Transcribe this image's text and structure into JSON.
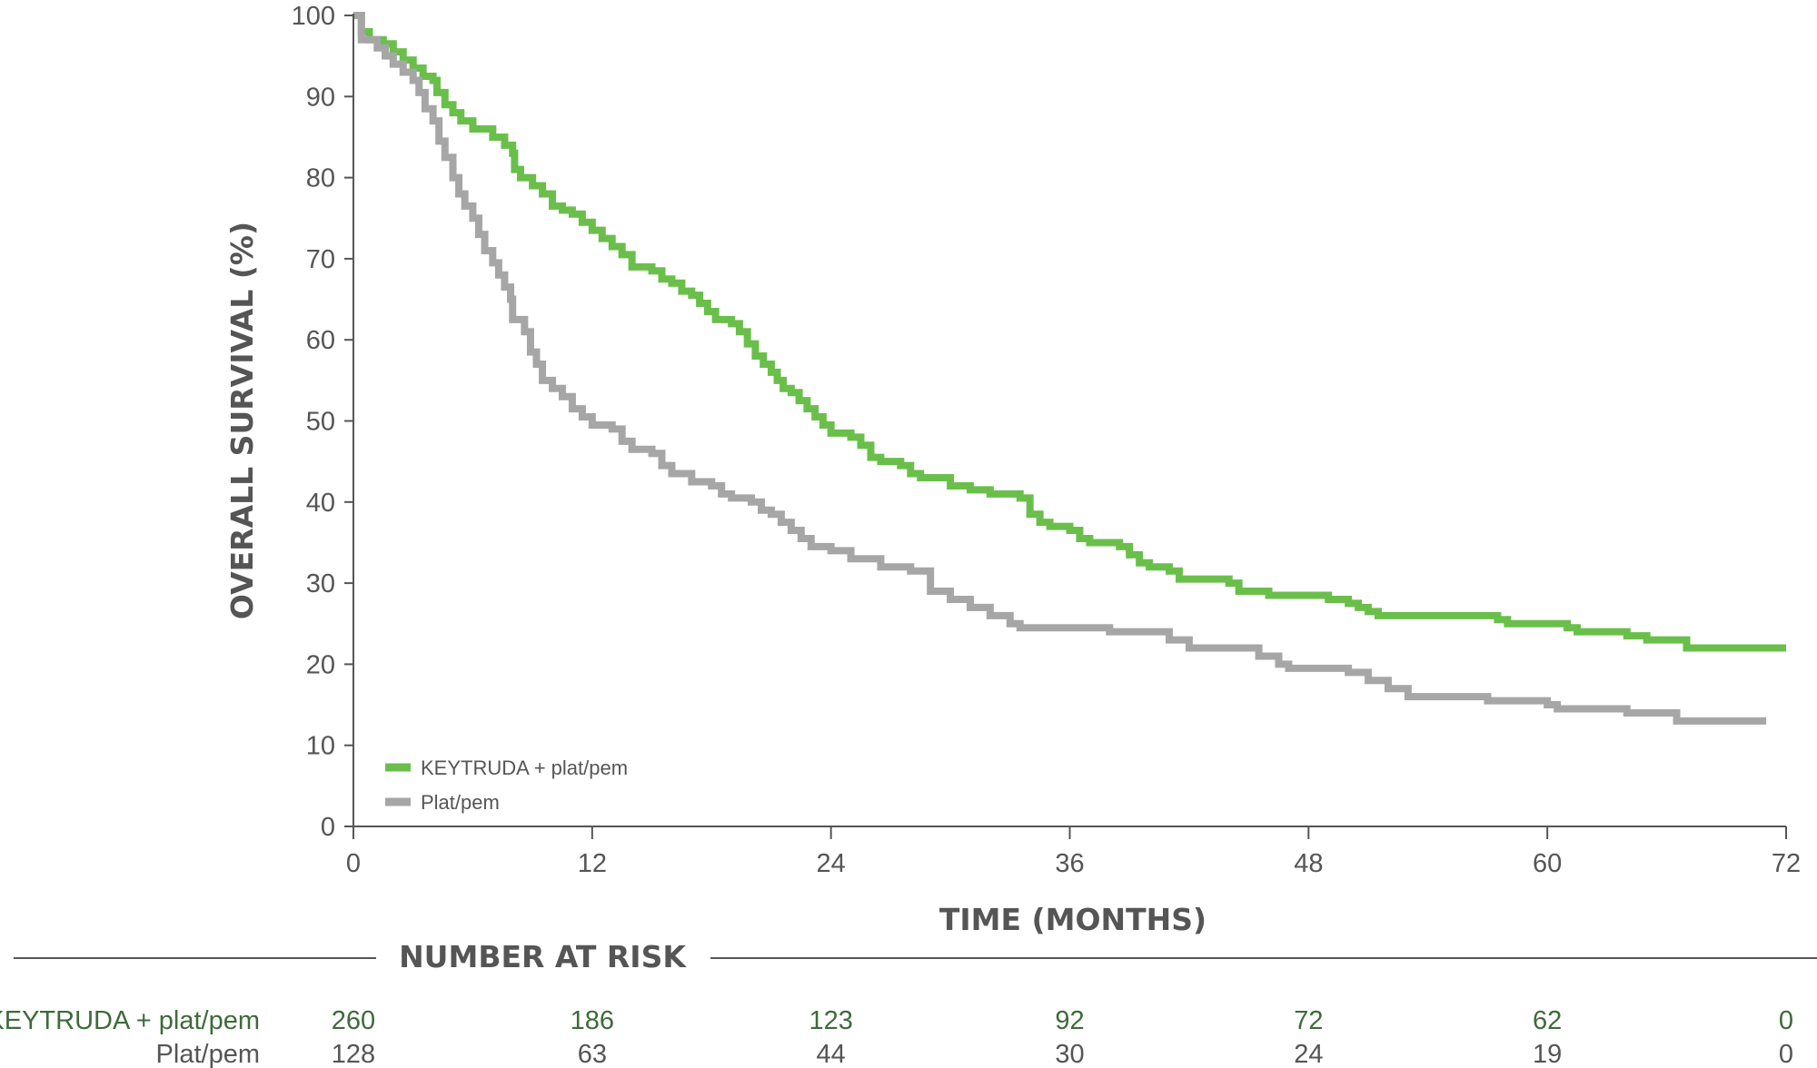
{
  "chart_data": {
    "type": "line",
    "subtype": "kaplan-meier",
    "title": "",
    "xlabel": "TIME (MONTHS)",
    "ylabel": "OVERALL SURVIVAL (%)",
    "xlim": [
      0,
      72
    ],
    "ylim": [
      0,
      100
    ],
    "xticks": [
      0,
      12,
      24,
      36,
      48,
      60,
      72
    ],
    "yticks": [
      0,
      10,
      20,
      30,
      40,
      50,
      60,
      70,
      80,
      90,
      100
    ],
    "grid": false,
    "legend_position": "bottom-left",
    "series": [
      {
        "name": "KEYTRUDA + plat/pem",
        "color": "#6abf4b",
        "points": [
          [
            0,
            100
          ],
          [
            0.4,
            98
          ],
          [
            0.8,
            97
          ],
          [
            1.5,
            96.5
          ],
          [
            2,
            95.5
          ],
          [
            2.5,
            94.5
          ],
          [
            3,
            93.5
          ],
          [
            3.5,
            92.5
          ],
          [
            4,
            92
          ],
          [
            4.2,
            90.5
          ],
          [
            4.6,
            89
          ],
          [
            5,
            88
          ],
          [
            5.4,
            87
          ],
          [
            6,
            86
          ],
          [
            7,
            85
          ],
          [
            7.6,
            84
          ],
          [
            8,
            83
          ],
          [
            8.1,
            81
          ],
          [
            8.4,
            80
          ],
          [
            9,
            79
          ],
          [
            9.5,
            78
          ],
          [
            10,
            76.5
          ],
          [
            10.5,
            76
          ],
          [
            11,
            75.5
          ],
          [
            11.5,
            74.5
          ],
          [
            12,
            73.5
          ],
          [
            12.5,
            72.5
          ],
          [
            13,
            71.5
          ],
          [
            13.5,
            70.5
          ],
          [
            14,
            69
          ],
          [
            15,
            68.5
          ],
          [
            15.5,
            67.5
          ],
          [
            16,
            67
          ],
          [
            16.5,
            66
          ],
          [
            17,
            65.5
          ],
          [
            17.4,
            64.5
          ],
          [
            17.8,
            63.5
          ],
          [
            18.2,
            62.5
          ],
          [
            19,
            62
          ],
          [
            19.4,
            61
          ],
          [
            19.8,
            59.5
          ],
          [
            20.2,
            58
          ],
          [
            20.6,
            57
          ],
          [
            21,
            56
          ],
          [
            21.3,
            55
          ],
          [
            21.6,
            54
          ],
          [
            22,
            53.5
          ],
          [
            22.4,
            52.5
          ],
          [
            22.8,
            51.5
          ],
          [
            23.2,
            50.5
          ],
          [
            23.6,
            49.5
          ],
          [
            24,
            48.5
          ],
          [
            25,
            48
          ],
          [
            25.5,
            47
          ],
          [
            26,
            45.5
          ],
          [
            26.5,
            45
          ],
          [
            27.5,
            44.5
          ],
          [
            28,
            43.5
          ],
          [
            28.5,
            43
          ],
          [
            30,
            42
          ],
          [
            31,
            41.5
          ],
          [
            32,
            41
          ],
          [
            33.5,
            40.5
          ],
          [
            34,
            38.5
          ],
          [
            34.5,
            37.5
          ],
          [
            35,
            37
          ],
          [
            36,
            36.5
          ],
          [
            36.5,
            35.5
          ],
          [
            37,
            35
          ],
          [
            38.5,
            34.5
          ],
          [
            39,
            33.5
          ],
          [
            39.5,
            32.5
          ],
          [
            40,
            32
          ],
          [
            41,
            31.5
          ],
          [
            41.5,
            30.5
          ],
          [
            44,
            30
          ],
          [
            44.5,
            29
          ],
          [
            46,
            28.5
          ],
          [
            49,
            28
          ],
          [
            50,
            27.5
          ],
          [
            50.5,
            27
          ],
          [
            51,
            26.5
          ],
          [
            51.5,
            26
          ],
          [
            52,
            26
          ],
          [
            57.5,
            25.5
          ],
          [
            58,
            25
          ],
          [
            61,
            24.5
          ],
          [
            61.5,
            24
          ],
          [
            64,
            23.5
          ],
          [
            65,
            23
          ],
          [
            67,
            22
          ],
          [
            72,
            22
          ]
        ]
      },
      {
        "name": "Plat/pem",
        "color": "#a6a6a6",
        "points": [
          [
            0,
            100
          ],
          [
            0.4,
            97
          ],
          [
            1.2,
            96
          ],
          [
            1.6,
            95
          ],
          [
            2,
            94
          ],
          [
            2.5,
            93
          ],
          [
            3,
            92
          ],
          [
            3.3,
            90.5
          ],
          [
            3.6,
            88.5
          ],
          [
            4,
            87
          ],
          [
            4.3,
            84.5
          ],
          [
            4.6,
            82.5
          ],
          [
            5,
            80
          ],
          [
            5.3,
            78
          ],
          [
            5.6,
            76.5
          ],
          [
            6,
            75
          ],
          [
            6.3,
            73
          ],
          [
            6.6,
            71
          ],
          [
            7,
            69.5
          ],
          [
            7.3,
            68
          ],
          [
            7.6,
            66.5
          ],
          [
            7.9,
            65
          ],
          [
            8,
            62.5
          ],
          [
            8.6,
            61
          ],
          [
            8.9,
            58.5
          ],
          [
            9.2,
            57
          ],
          [
            9.5,
            55
          ],
          [
            10,
            54
          ],
          [
            10.5,
            53
          ],
          [
            11,
            51.5
          ],
          [
            11.5,
            50.5
          ],
          [
            12,
            49.5
          ],
          [
            13,
            49
          ],
          [
            13.5,
            47.5
          ],
          [
            14,
            46.5
          ],
          [
            15,
            46
          ],
          [
            15.5,
            44.5
          ],
          [
            16,
            43.5
          ],
          [
            17,
            42.5
          ],
          [
            18,
            42
          ],
          [
            18.5,
            41
          ],
          [
            19,
            40.5
          ],
          [
            20,
            40
          ],
          [
            20.5,
            39
          ],
          [
            21,
            38.5
          ],
          [
            21.5,
            37.5
          ],
          [
            22,
            36.5
          ],
          [
            22.5,
            35.5
          ],
          [
            23,
            34.5
          ],
          [
            24,
            34
          ],
          [
            25,
            33
          ],
          [
            26.5,
            32
          ],
          [
            28,
            31.5
          ],
          [
            29,
            29
          ],
          [
            30,
            28
          ],
          [
            31,
            27
          ],
          [
            32,
            26
          ],
          [
            33,
            25
          ],
          [
            33.5,
            24.5
          ],
          [
            38,
            24
          ],
          [
            41,
            23
          ],
          [
            42,
            22
          ],
          [
            45.5,
            21
          ],
          [
            46.5,
            20
          ],
          [
            47,
            19.5
          ],
          [
            50,
            19
          ],
          [
            51,
            18
          ],
          [
            52,
            17
          ],
          [
            53,
            16
          ],
          [
            57,
            15.5
          ],
          [
            60,
            15
          ],
          [
            60.5,
            14.5
          ],
          [
            64,
            14
          ],
          [
            66.5,
            13
          ],
          [
            71,
            13
          ]
        ]
      }
    ],
    "number_at_risk": {
      "title": "NUMBER AT RISK",
      "times": [
        0,
        12,
        24,
        36,
        48,
        60,
        72
      ],
      "rows": [
        {
          "label": "KEYTRUDA + plat/pem",
          "values": [
            "260",
            "186",
            "123",
            "92",
            "72",
            "62",
            "0"
          ]
        },
        {
          "label": "Plat/pem",
          "values": [
            "128",
            "63",
            "44",
            "30",
            "24",
            "19",
            "0"
          ]
        }
      ]
    }
  }
}
